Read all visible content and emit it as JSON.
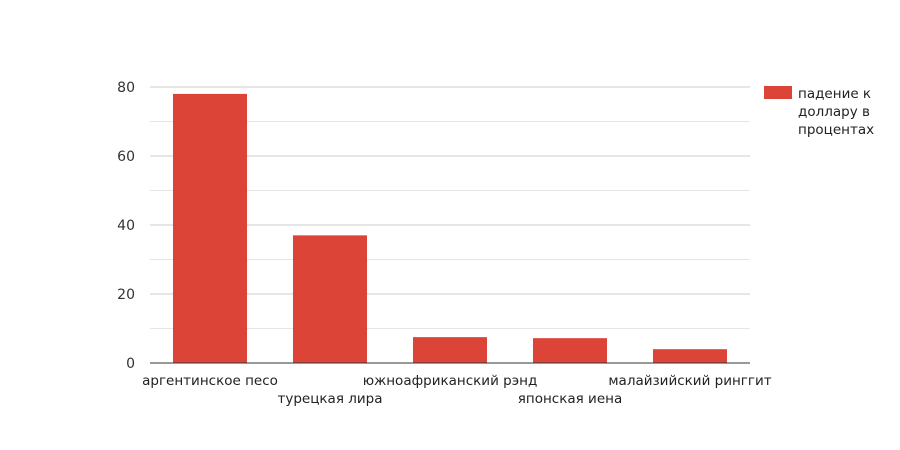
{
  "chart_data": {
    "type": "bar",
    "categories": [
      "аргентинское песо",
      "турецкая лира",
      "южноафриканский рэнд",
      "японская иена",
      "малайзийский ринггит"
    ],
    "series": [
      {
        "name": "падение к доллару в процентах",
        "values": [
          78,
          37,
          7.5,
          7.2,
          4
        ],
        "color": "#db4437"
      }
    ],
    "ylim": [
      0,
      80
    ],
    "yticks": [
      0,
      20,
      40,
      60,
      80
    ],
    "grid": true,
    "legend_position": "right"
  }
}
